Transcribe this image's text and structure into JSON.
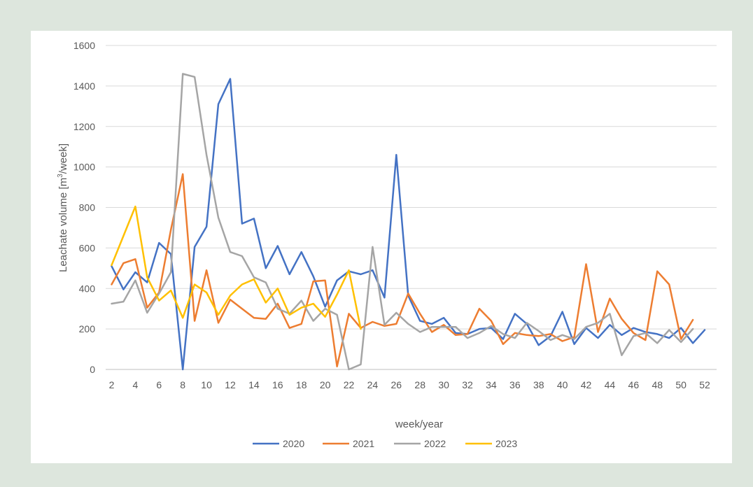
{
  "chart_data": {
    "type": "line",
    "title": "",
    "xlabel": "week/year",
    "ylabel_main": "Leachate volume [m",
    "ylabel_sup": "3",
    "ylabel_tail": "/week]",
    "ylim": [
      0,
      1600
    ],
    "yticks": [
      0,
      200,
      400,
      600,
      800,
      1000,
      1200,
      1400,
      1600
    ],
    "xlim": [
      1.5,
      53
    ],
    "xticks": [
      2,
      4,
      6,
      8,
      10,
      12,
      14,
      16,
      18,
      20,
      22,
      24,
      26,
      28,
      30,
      32,
      34,
      36,
      38,
      40,
      42,
      44,
      46,
      48,
      50,
      52
    ],
    "grid": "horizontal",
    "legend": "bottom",
    "series": [
      {
        "name": "2020",
        "color": "#4472c4",
        "x": [
          2,
          3,
          4,
          5,
          6,
          7,
          8,
          9,
          10,
          11,
          12,
          13,
          14,
          15,
          16,
          17,
          18,
          19,
          20,
          21,
          22,
          23,
          24,
          25,
          26,
          27,
          28,
          29,
          30,
          31,
          32,
          33,
          34,
          35,
          36,
          37,
          38,
          39,
          40,
          41,
          42,
          43,
          44,
          45,
          46,
          47,
          48,
          49,
          50,
          51,
          52
        ],
        "values": [
          510,
          395,
          480,
          430,
          625,
          570,
          0,
          605,
          705,
          1310,
          1435,
          720,
          745,
          500,
          610,
          470,
          580,
          460,
          310,
          440,
          485,
          470,
          490,
          355,
          1060,
          365,
          240,
          225,
          255,
          180,
          175,
          200,
          205,
          150,
          275,
          225,
          120,
          165,
          285,
          125,
          205,
          155,
          220,
          170,
          205,
          185,
          175,
          155,
          205,
          130,
          195
        ]
      },
      {
        "name": "2021",
        "color": "#ed7d31",
        "x": [
          2,
          3,
          4,
          5,
          6,
          7,
          8,
          9,
          10,
          11,
          12,
          13,
          14,
          15,
          16,
          17,
          18,
          19,
          20,
          21,
          22,
          23,
          24,
          25,
          26,
          27,
          28,
          29,
          30,
          31,
          32,
          33,
          34,
          35,
          36,
          37,
          38,
          39,
          40,
          41,
          42,
          43,
          44,
          45,
          46,
          47,
          48,
          49,
          50,
          51
        ],
        "values": [
          420,
          525,
          545,
          305,
          380,
          690,
          965,
          240,
          490,
          230,
          345,
          300,
          255,
          250,
          325,
          205,
          225,
          435,
          440,
          15,
          275,
          205,
          235,
          215,
          225,
          375,
          275,
          185,
          220,
          170,
          175,
          300,
          240,
          125,
          180,
          170,
          165,
          175,
          140,
          160,
          520,
          185,
          350,
          250,
          180,
          145,
          485,
          420,
          150,
          245
        ]
      },
      {
        "name": "2022",
        "color": "#a5a5a5",
        "x": [
          2,
          3,
          4,
          5,
          6,
          7,
          8,
          9,
          10,
          11,
          12,
          13,
          14,
          15,
          16,
          17,
          18,
          19,
          20,
          21,
          22,
          23,
          24,
          25,
          26,
          27,
          28,
          29,
          30,
          31,
          32,
          33,
          34,
          35,
          36,
          37,
          38,
          39,
          40,
          41,
          42,
          43,
          44,
          45,
          46,
          47,
          48,
          49,
          50,
          51
        ],
        "values": [
          325,
          335,
          440,
          280,
          375,
          480,
          1460,
          1445,
          1060,
          750,
          580,
          560,
          455,
          430,
          300,
          275,
          340,
          240,
          300,
          270,
          0,
          25,
          605,
          220,
          280,
          225,
          185,
          210,
          210,
          210,
          155,
          180,
          215,
          175,
          155,
          230,
          190,
          145,
          170,
          150,
          210,
          230,
          275,
          70,
          165,
          180,
          130,
          195,
          135,
          200
        ]
      },
      {
        "name": "2023",
        "color": "#ffc000",
        "x": [
          2,
          4,
          5,
          6,
          7,
          8,
          9,
          10,
          11,
          12,
          13,
          14,
          15,
          16,
          17,
          18,
          19,
          20,
          21,
          22,
          23
        ],
        "values": [
          515,
          805,
          455,
          340,
          390,
          255,
          420,
          380,
          270,
          365,
          420,
          445,
          330,
          400,
          270,
          305,
          325,
          260,
          370,
          490,
          200
        ]
      }
    ]
  }
}
